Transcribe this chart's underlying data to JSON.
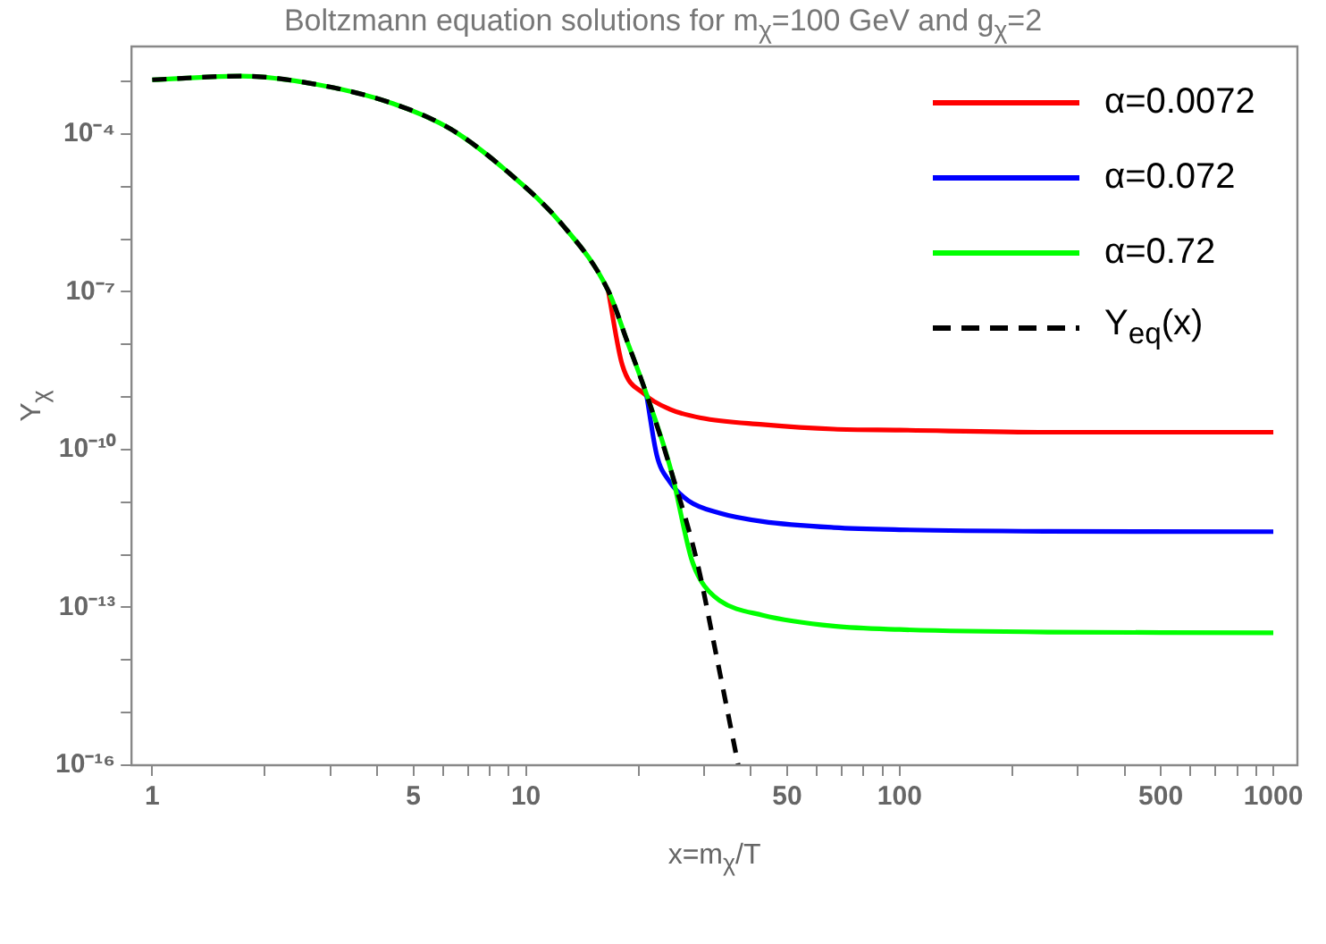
{
  "chart_data": {
    "type": "line",
    "title": "Boltzmann equation solutions for m$_{χ}$=100 GeV and g$_{χ}$=2",
    "xlabel": "x=m$_{χ}$/T",
    "ylabel": "Y$_{χ}$",
    "log": "xy",
    "xlim": [
      0.88,
      1160
    ],
    "ylim": [
      1e-16,
      0.0046
    ],
    "xticks": [
      1,
      {
        "value": 2,
        "label": null
      },
      {
        "value": 3,
        "label": null
      },
      {
        "value": 4,
        "label": null
      },
      5,
      {
        "value": 6,
        "label": null
      },
      {
        "value": 7,
        "label": null
      },
      {
        "value": 8,
        "label": null
      },
      {
        "value": 9,
        "label": null
      },
      10,
      {
        "value": 20,
        "label": null
      },
      {
        "value": 30,
        "label": null
      },
      {
        "value": 40,
        "label": null
      },
      50,
      {
        "value": 60,
        "label": null
      },
      {
        "value": 70,
        "label": null
      },
      {
        "value": 80,
        "label": null
      },
      {
        "value": 90,
        "label": null
      },
      100,
      {
        "value": 200,
        "label": null
      },
      {
        "value": 300,
        "label": null
      },
      {
        "value": 400,
        "label": null
      },
      500,
      {
        "value": 600,
        "label": null
      },
      {
        "value": 700,
        "label": null
      },
      {
        "value": 800,
        "label": null
      },
      {
        "value": 900,
        "label": null
      },
      1000
    ],
    "yticks": [
      {
        "value": 1e-16,
        "label": "10⁻¹⁶"
      },
      {
        "value": 1e-15,
        "label": null
      },
      {
        "value": 1e-14,
        "label": null
      },
      {
        "value": 1e-13,
        "label": "10⁻¹³"
      },
      {
        "value": 1e-12,
        "label": null
      },
      {
        "value": 1e-11,
        "label": null
      },
      {
        "value": 1e-10,
        "label": "10⁻¹⁰"
      },
      {
        "value": 1e-09,
        "label": null
      },
      {
        "value": 1e-08,
        "label": null
      },
      {
        "value": 1e-07,
        "label": "10⁻⁷"
      },
      {
        "value": 1e-06,
        "label": null
      },
      {
        "value": 1e-05,
        "label": null
      },
      {
        "value": 0.0001,
        "label": "10⁻⁴"
      },
      {
        "value": 0.001,
        "label": null
      }
    ],
    "grid": false,
    "legend": "top right",
    "marker": "none",
    "series": [
      {
        "name": "α=0.0072",
        "color": "#ff0000",
        "line_style": "solid",
        "x": [
          16.6,
          18.1,
          20.7,
          24.2,
          29.4,
          43,
          66.6,
          100,
          249,
          1000
        ],
        "values": [
          1.05e-07,
          4.1e-09,
          1.15e-09,
          5.9e-10,
          4e-10,
          3e-10,
          2.45e-10,
          2.35e-10,
          2.14e-10,
          2.14e-10
        ]
      },
      {
        "name": "α=0.072",
        "color": "#0000ff",
        "line_style": "solid",
        "x": [
          21,
          22.4,
          24.2,
          27.2,
          33,
          43,
          66.6,
          100,
          249,
          1000
        ],
        "values": [
          1.15e-09,
          7.8e-11,
          2.5e-11,
          1.07e-11,
          6.2e-12,
          4.3e-12,
          3.3e-12,
          3e-12,
          2.8e-12,
          2.75e-12
        ]
      },
      {
        "name": "α=0.72",
        "color": "#00ff00",
        "line_style": "solid",
        "x": [
          1,
          1.73,
          2.76,
          4.4,
          6.3,
          8.9,
          12.6,
          16.6,
          18.7,
          21,
          24.5,
          27.7,
          29.4,
          33,
          43,
          66.6,
          100,
          249,
          1000
        ],
        "values": [
          0.00107,
          0.00126,
          0.00087,
          0.00038,
          0.000123,
          1.95e-05,
          1.78e-06,
          1.05e-07,
          1.1e-08,
          1.15e-09,
          3.8e-11,
          8.5e-13,
          3.2e-13,
          1.35e-13,
          7.1e-14,
          4.4e-14,
          3.8e-14,
          3.4e-14,
          3.3e-14
        ]
      },
      {
        "name": "Y$_{eq}$(x)",
        "color": "#000000",
        "line_style": "dashed",
        "x": [
          1,
          1.73,
          2.76,
          4.4,
          6.3,
          8.9,
          12.6,
          16.6,
          18.7,
          21,
          24.5,
          28.7,
          32.2,
          37
        ],
        "values": [
          0.00107,
          0.00126,
          0.00087,
          0.00038,
          0.000123,
          1.95e-05,
          1.78e-06,
          1.05e-07,
          1.1e-08,
          1.15e-09,
          3.8e-11,
          7.4e-13,
          1.4e-14,
          1e-16
        ]
      }
    ]
  }
}
